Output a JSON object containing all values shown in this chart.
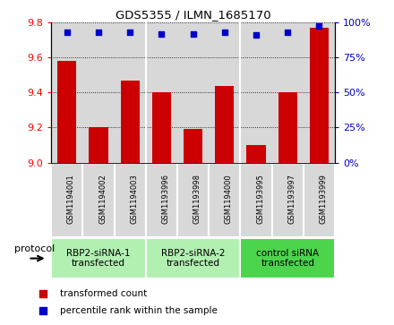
{
  "title": "GDS5355 / ILMN_1685170",
  "samples": [
    "GSM1194001",
    "GSM1194002",
    "GSM1194003",
    "GSM1193996",
    "GSM1193998",
    "GSM1194000",
    "GSM1193995",
    "GSM1193997",
    "GSM1193999"
  ],
  "red_values": [
    9.58,
    9.2,
    9.47,
    9.4,
    9.19,
    9.44,
    9.1,
    9.4,
    9.77
  ],
  "blue_values": [
    93,
    93,
    93,
    92,
    92,
    93,
    91,
    93,
    98
  ],
  "ylim_left": [
    9.0,
    9.8
  ],
  "ylim_right": [
    0,
    100
  ],
  "yticks_left": [
    9.0,
    9.2,
    9.4,
    9.6,
    9.8
  ],
  "yticks_right": [
    0,
    25,
    50,
    75,
    100
  ],
  "groups": [
    {
      "label": "RBP2-siRNA-1\ntransfected",
      "start": 0,
      "end": 3,
      "color": "#b2f0b2"
    },
    {
      "label": "RBP2-siRNA-2\ntransfected",
      "start": 3,
      "end": 6,
      "color": "#b2f0b2"
    },
    {
      "label": "control siRNA\ntransfected",
      "start": 6,
      "end": 9,
      "color": "#4cd44c"
    }
  ],
  "bar_color": "#cc0000",
  "dot_color": "#0000cc",
  "grid_color": "#000000",
  "bg_color": "#d8d8d8",
  "legend_red": "transformed count",
  "legend_blue": "percentile rank within the sample",
  "protocol_label": "protocol"
}
